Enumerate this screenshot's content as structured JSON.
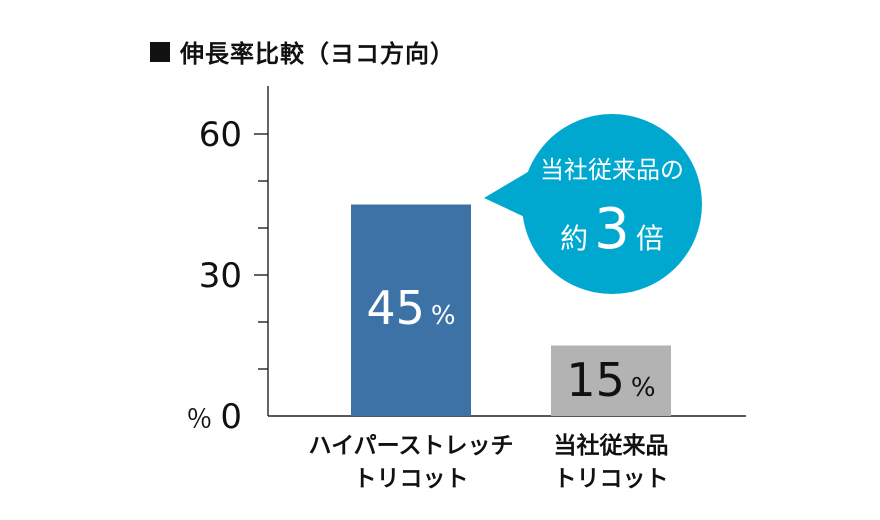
{
  "chart_data": {
    "type": "bar",
    "title": "伸長率比較（ヨコ方向）",
    "yunit": "％",
    "ylim": [
      0,
      70
    ],
    "yticks": [
      0,
      30,
      60
    ],
    "yminor_ticks": [
      10,
      20,
      40,
      50
    ],
    "categories": [
      [
        "ハイパーストレッチ",
        "トリコット"
      ],
      [
        "当社従来品",
        "トリコット"
      ]
    ],
    "values": [
      45,
      15
    ],
    "value_labels": [
      {
        "number": "45",
        "unit": "%"
      },
      {
        "number": "15",
        "unit": "%"
      }
    ],
    "bar_colors": [
      "#3d72a7",
      "#b3b3b3"
    ],
    "value_label_colors": [
      "#ffffff",
      "#111111"
    ],
    "callout": {
      "line1": "当社従来品の",
      "prefix": "約",
      "number": "3",
      "suffix": "倍",
      "color": "#00a8d0"
    }
  }
}
